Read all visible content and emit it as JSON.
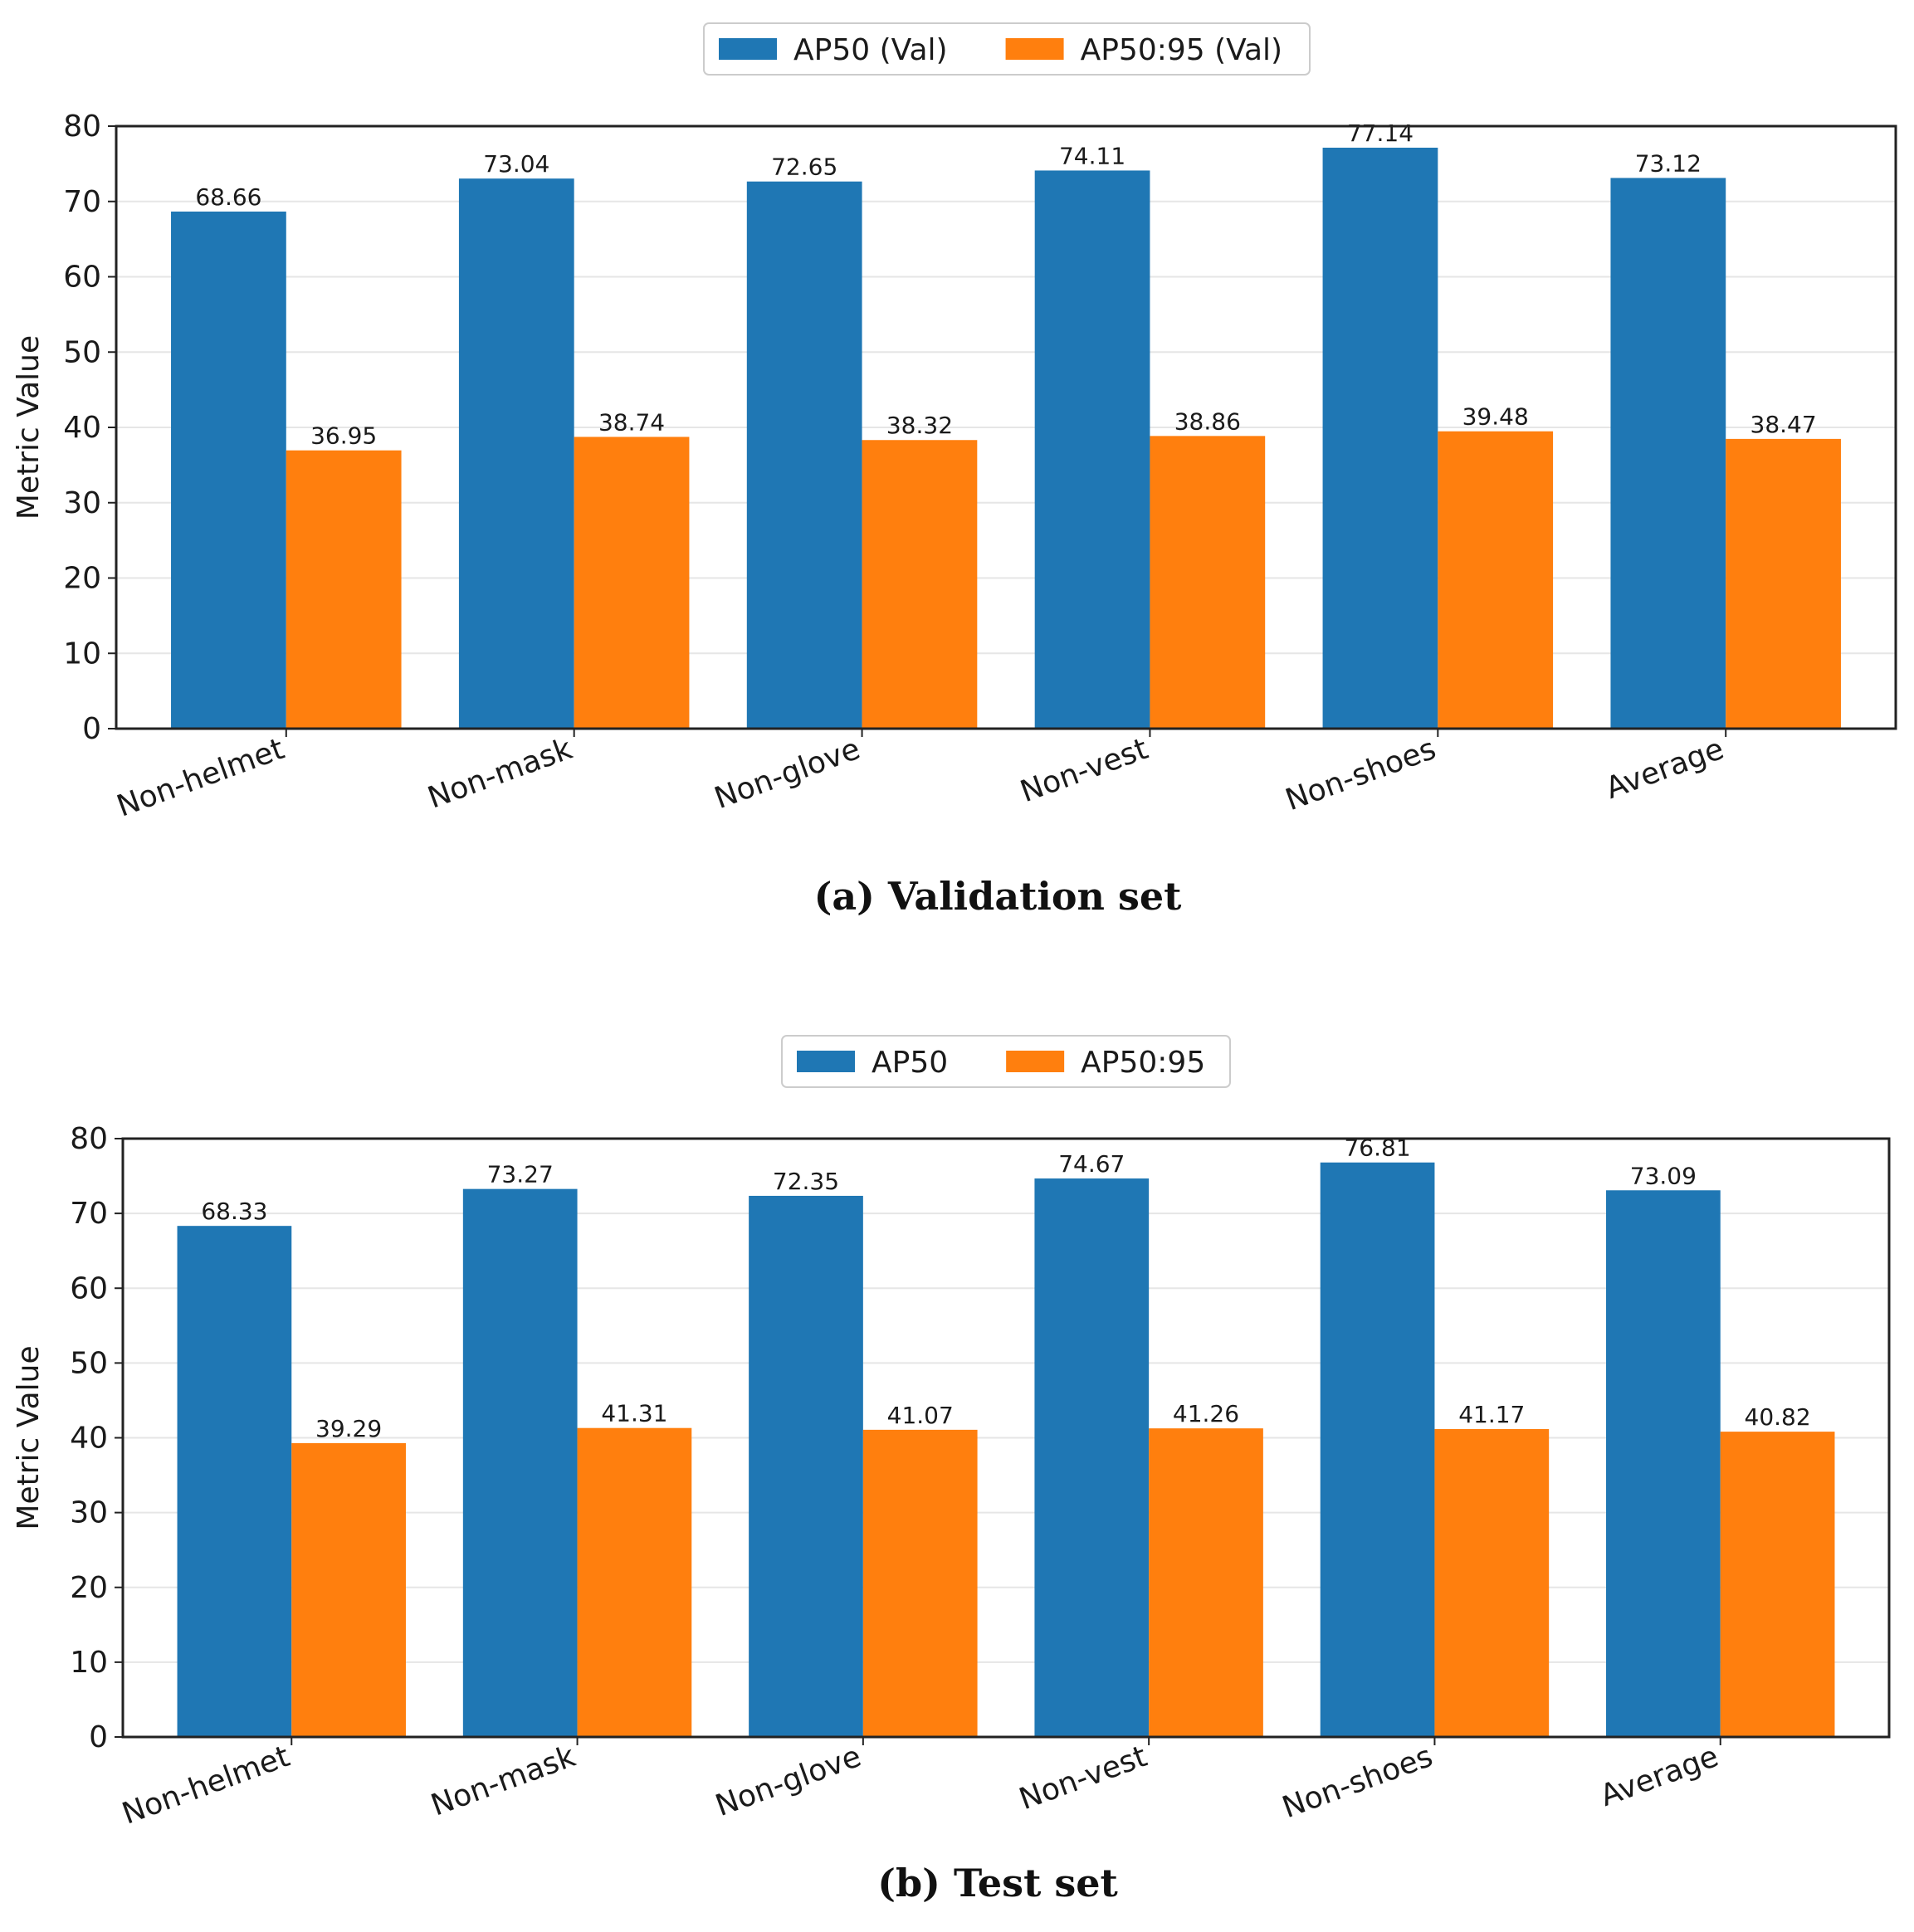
{
  "colors": {
    "ap50": "#1f77b4",
    "ap5095": "#ff7f0e",
    "grid": "#e6e6e6",
    "axis": "#222222"
  },
  "chart_data": [
    {
      "type": "bar",
      "caption": "(a) Validation set",
      "ylabel": "Metric Value",
      "xlabel": "",
      "ylim": [
        0,
        80
      ],
      "yticks": [
        0,
        10,
        20,
        30,
        40,
        50,
        60,
        70,
        80
      ],
      "grid": true,
      "legend_position": "top-center",
      "categories": [
        "Non-helmet",
        "Non-mask",
        "Non-glove",
        "Non-vest",
        "Non-shoes",
        "Average"
      ],
      "series": [
        {
          "name": "AP50 (Val)",
          "values": [
            68.66,
            73.04,
            72.65,
            74.11,
            77.14,
            73.12
          ],
          "value_labels": [
            "68.66",
            "73.04",
            "72.65",
            "74.11",
            "77.14",
            "73.12"
          ]
        },
        {
          "name": "AP50:95 (Val)",
          "values": [
            36.95,
            38.74,
            38.32,
            38.86,
            39.48,
            38.47
          ],
          "value_labels": [
            "36.95",
            "38.74",
            "38.32",
            "38.86",
            "39.48",
            "38.47"
          ]
        }
      ]
    },
    {
      "type": "bar",
      "caption": "(b) Test set",
      "ylabel": "Metric Value",
      "xlabel": "",
      "ylim": [
        0,
        80
      ],
      "yticks": [
        0,
        10,
        20,
        30,
        40,
        50,
        60,
        70,
        80
      ],
      "grid": true,
      "legend_position": "top-center",
      "categories": [
        "Non-helmet",
        "Non-mask",
        "Non-glove",
        "Non-vest",
        "Non-shoes",
        "Average"
      ],
      "series": [
        {
          "name": "AP50",
          "values": [
            68.33,
            73.27,
            72.35,
            74.67,
            76.81,
            73.09
          ],
          "value_labels": [
            "68.33",
            "73.27",
            "72.35",
            "74.67",
            "76.81",
            "73.09"
          ]
        },
        {
          "name": "AP50:95",
          "values": [
            39.29,
            41.31,
            41.07,
            41.26,
            41.17,
            40.82
          ],
          "value_labels": [
            "39.29",
            "41.31",
            "41.07",
            "41.26",
            "41.17",
            "40.82"
          ]
        }
      ]
    }
  ]
}
